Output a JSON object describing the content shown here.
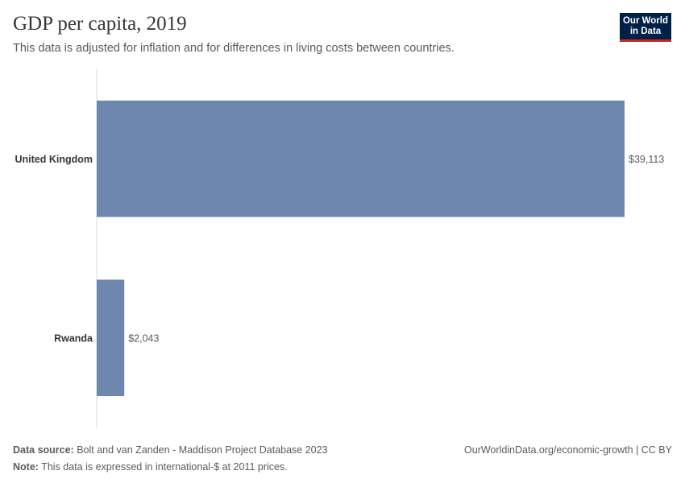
{
  "header": {
    "title": "GDP per capita, 2019",
    "subtitle": "This data is adjusted for inflation and for differences in living costs between countries.",
    "logo_line1": "Our World",
    "logo_line2": "in Data"
  },
  "chart_data": {
    "type": "bar",
    "orientation": "horizontal",
    "categories": [
      "United Kingdom",
      "Rwanda"
    ],
    "values": [
      39113,
      2043
    ],
    "value_labels": [
      "$39,113",
      "$2,043"
    ],
    "xlim": [
      0,
      39113
    ],
    "grid": false,
    "colors": {
      "bar": "#6d87ae",
      "axis": "#dadada",
      "label": "#5b5b5b",
      "category": "#373737"
    }
  },
  "footer": {
    "source_label": "Data source:",
    "source_text": "Bolt and van Zanden - Maddison Project Database 2023",
    "note_label": "Note:",
    "note_text": "This data is expressed in international-$ at 2011 prices.",
    "credit": "OurWorldinData.org/economic-growth | CC BY"
  }
}
